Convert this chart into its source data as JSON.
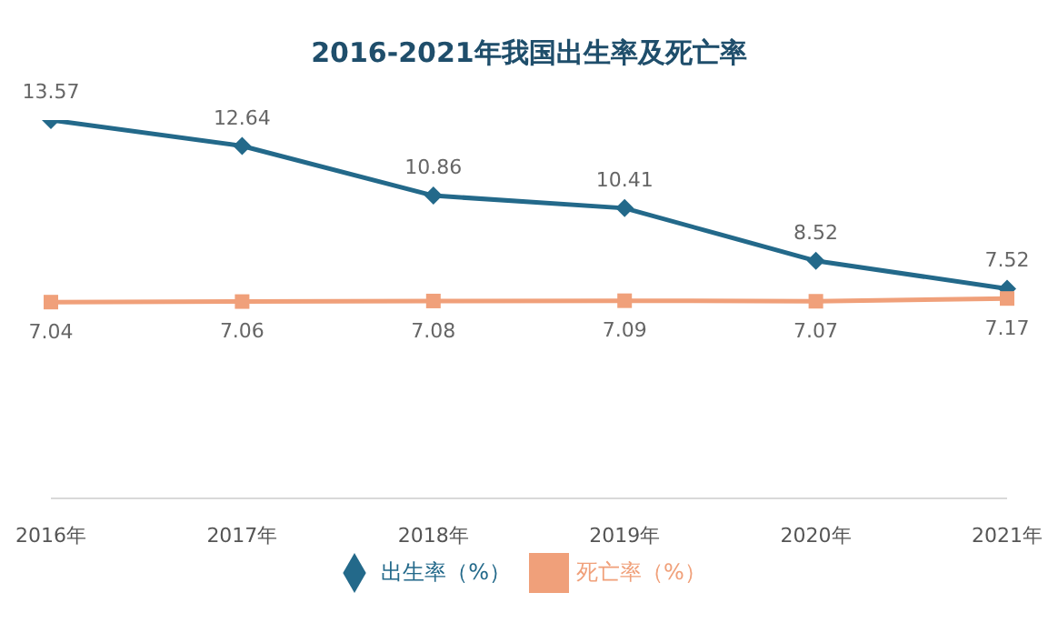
{
  "chart_data": {
    "type": "line",
    "title": "2016-2021年我国出生率及死亡率",
    "categories": [
      "2016年",
      "2017年",
      "2018年",
      "2019年",
      "2020年",
      "2021年"
    ],
    "series": [
      {
        "name": "出生率（%）",
        "color": "#23698a",
        "marker": "diamond",
        "values": [
          13.57,
          12.64,
          10.86,
          10.41,
          8.52,
          7.52
        ]
      },
      {
        "name": "死亡率（%）",
        "color": "#f0a07a",
        "marker": "square",
        "values": [
          7.04,
          7.06,
          7.08,
          7.09,
          7.07,
          7.17
        ]
      }
    ],
    "tick_labels": "x",
    "data_labels": true,
    "legend": "bottom"
  }
}
